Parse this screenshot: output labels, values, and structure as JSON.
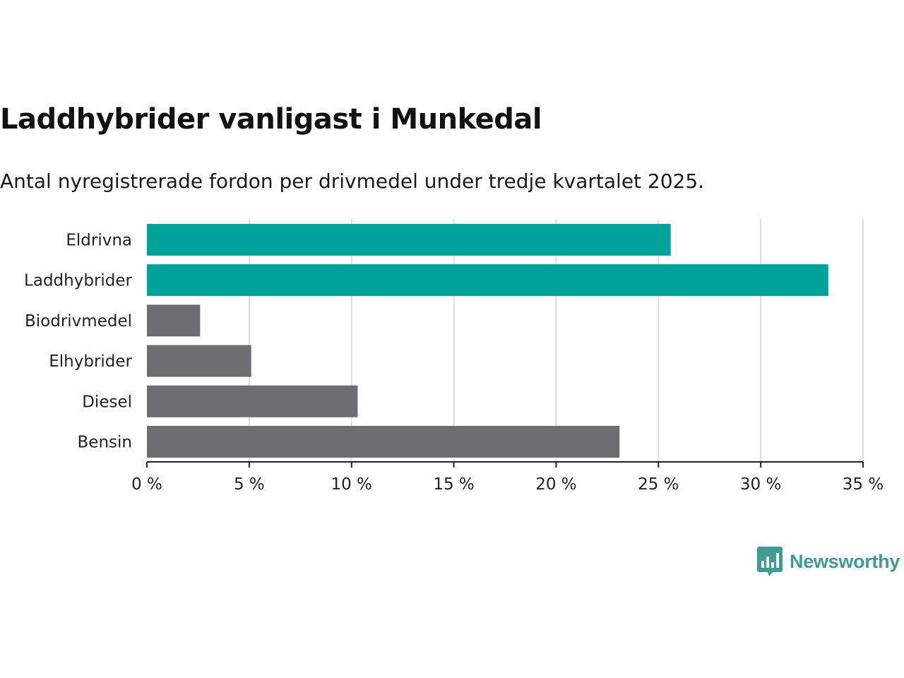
{
  "header": {
    "title": "Laddhybrider vanligast i Munkedal",
    "subtitle": "Antal nyregistrerade fordon per drivmedel under tredje kvartalet 2025."
  },
  "brand": {
    "name": "Newsworthy",
    "icon": "newsworthy-logo-icon",
    "color": "#3f9b93"
  },
  "colors": {
    "highlight": "#00a39a",
    "default": "#6e6d73",
    "grid": "#dddddd",
    "axis": "#222222"
  },
  "chart_data": {
    "type": "bar",
    "orientation": "horizontal",
    "title": "Laddhybrider vanligast i Munkedal",
    "subtitle": "Antal nyregistrerade fordon per drivmedel under tredje kvartalet 2025.",
    "categories": [
      "Eldrivna",
      "Laddhybrider",
      "Biodrivmedel",
      "Elhybrider",
      "Diesel",
      "Bensin"
    ],
    "values": [
      25.6,
      33.3,
      2.6,
      5.1,
      10.3,
      23.1
    ],
    "highlighted": [
      true,
      true,
      false,
      false,
      false,
      false
    ],
    "xlim": [
      0,
      35
    ],
    "xticks": [
      0,
      5,
      10,
      15,
      20,
      25,
      30,
      35
    ],
    "tick_suffix": " %",
    "xlabel": "",
    "ylabel": "",
    "grid": true
  }
}
